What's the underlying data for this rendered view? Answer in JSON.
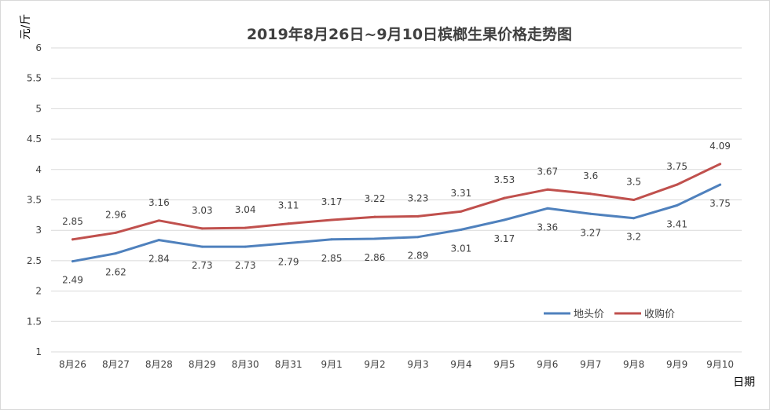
{
  "chart_data": {
    "type": "line",
    "title": "2019年8月26日~9月10日槟榔生果价格走势图",
    "xlabel": "日期",
    "ylabel": "元/斤",
    "ylim": [
      1,
      6
    ],
    "yticks": [
      "1",
      "1.5",
      "2",
      "2.5",
      "3",
      "3.5",
      "4",
      "4.5",
      "5",
      "5.5",
      "6"
    ],
    "grid": true,
    "legend": "bottom-right",
    "categories": [
      "8月26",
      "8月27",
      "8月28",
      "8月29",
      "8月30",
      "8月31",
      "9月1",
      "9月2",
      "9月3",
      "9月4",
      "9月5",
      "9月6",
      "9月7",
      "9月8",
      "9月9",
      "9月10"
    ],
    "series": [
      {
        "name": "地头价",
        "color": "#4f81bd",
        "values": [
          2.49,
          2.62,
          2.84,
          2.73,
          2.73,
          2.79,
          2.85,
          2.86,
          2.89,
          3.01,
          3.17,
          3.36,
          3.27,
          3.2,
          3.41,
          3.75
        ],
        "labels": [
          "2.49",
          "2.62",
          "2.84",
          "2.73",
          "2.73",
          "2.79",
          "2.85",
          "2.86",
          "2.89",
          "3.01",
          "3.17",
          "3.36",
          "3.27",
          "3.2",
          "3.41",
          "3.75"
        ]
      },
      {
        "name": "收购价",
        "color": "#c0504d",
        "values": [
          2.85,
          2.96,
          3.16,
          3.03,
          3.04,
          3.11,
          3.17,
          3.22,
          3.23,
          3.31,
          3.53,
          3.67,
          3.6,
          3.5,
          3.75,
          4.09
        ],
        "labels": [
          "2.85",
          "2.96",
          "3.16",
          "3.03",
          "3.04",
          "3.11",
          "3.17",
          "3.22",
          "3.23",
          "3.31",
          "3.53",
          "3.67",
          "3.6",
          "3.5",
          "3.75",
          "4.09"
        ]
      }
    ]
  }
}
